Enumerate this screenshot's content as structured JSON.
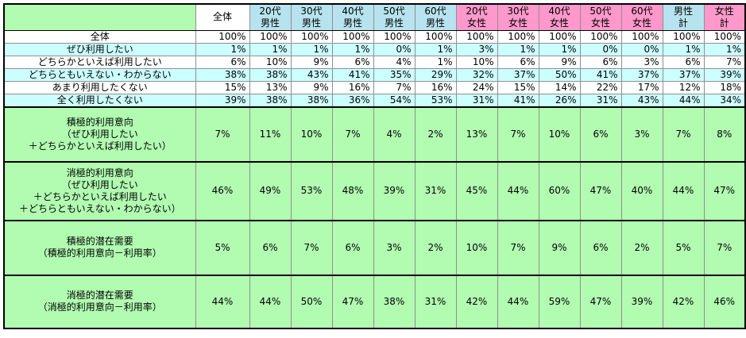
{
  "colors": {
    "summary_green": "#b2fcb2",
    "row_cyan": "#ccffff",
    "male_blue": "#b7e3ee",
    "female_pink": "#ff99cc",
    "grid_gray": "#8f8f8f",
    "border_black": "#000000"
  },
  "chart_data": {
    "type": "table",
    "corner_label": "",
    "columns": [
      {
        "lines": [
          "全体"
        ],
        "group": "total"
      },
      {
        "lines": [
          "20代",
          "男性"
        ],
        "group": "male"
      },
      {
        "lines": [
          "30代",
          "男性"
        ],
        "group": "male"
      },
      {
        "lines": [
          "40代",
          "男性"
        ],
        "group": "male"
      },
      {
        "lines": [
          "50代",
          "男性"
        ],
        "group": "male"
      },
      {
        "lines": [
          "60代",
          "男性"
        ],
        "group": "male"
      },
      {
        "lines": [
          "20代",
          "女性"
        ],
        "group": "female"
      },
      {
        "lines": [
          "30代",
          "女性"
        ],
        "group": "female"
      },
      {
        "lines": [
          "40代",
          "女性"
        ],
        "group": "female"
      },
      {
        "lines": [
          "50代",
          "女性"
        ],
        "group": "female"
      },
      {
        "lines": [
          "60代",
          "女性"
        ],
        "group": "female"
      },
      {
        "lines": [
          "男性",
          "計"
        ],
        "group": "male"
      },
      {
        "lines": [
          "女性",
          "計"
        ],
        "group": "female"
      }
    ],
    "rows": [
      {
        "label_lines": [
          "全体"
        ],
        "style": "white",
        "values": [
          "100%",
          "100%",
          "100%",
          "100%",
          "100%",
          "100%",
          "100%",
          "100%",
          "100%",
          "100%",
          "100%",
          "100%",
          "100%"
        ]
      },
      {
        "label_lines": [
          "ぜひ利用したい"
        ],
        "style": "cyan",
        "values": [
          "1%",
          "1%",
          "1%",
          "1%",
          "0%",
          "1%",
          "3%",
          "1%",
          "1%",
          "0%",
          "0%",
          "1%",
          "1%"
        ]
      },
      {
        "label_lines": [
          "どちらかといえば利用したい"
        ],
        "style": "white",
        "values": [
          "6%",
          "10%",
          "9%",
          "6%",
          "4%",
          "1%",
          "10%",
          "6%",
          "9%",
          "6%",
          "3%",
          "6%",
          "7%"
        ]
      },
      {
        "label_lines": [
          "どちらともいえない・わからない"
        ],
        "style": "cyan",
        "values": [
          "38%",
          "38%",
          "43%",
          "41%",
          "35%",
          "29%",
          "32%",
          "37%",
          "50%",
          "41%",
          "37%",
          "37%",
          "39%"
        ]
      },
      {
        "label_lines": [
          "あまり利用したくない"
        ],
        "style": "white",
        "values": [
          "15%",
          "13%",
          "9%",
          "16%",
          "7%",
          "16%",
          "24%",
          "15%",
          "14%",
          "22%",
          "17%",
          "12%",
          "18%"
        ]
      },
      {
        "label_lines": [
          "全く利用したくない"
        ],
        "style": "cyan",
        "values": [
          "39%",
          "38%",
          "38%",
          "36%",
          "54%",
          "53%",
          "31%",
          "41%",
          "26%",
          "31%",
          "43%",
          "44%",
          "34%"
        ]
      },
      {
        "label_lines": [
          "積極的利用意向",
          "（ぜひ利用したい",
          "＋どちらかといえば利用したい）"
        ],
        "style": "green",
        "values": [
          "7%",
          "11%",
          "10%",
          "7%",
          "4%",
          "2%",
          "13%",
          "7%",
          "10%",
          "6%",
          "3%",
          "7%",
          "8%"
        ]
      },
      {
        "label_lines": [
          "消極的利用意向",
          "（ぜひ利用したい",
          "＋どちらかといえば利用したい",
          "＋どちらともいえない・わからない）"
        ],
        "style": "green",
        "values": [
          "46%",
          "49%",
          "53%",
          "48%",
          "39%",
          "31%",
          "45%",
          "44%",
          "60%",
          "47%",
          "40%",
          "44%",
          "47%"
        ]
      },
      {
        "label_lines": [
          "積極的潜在需要",
          "（積極的利用意向－利用率）"
        ],
        "style": "green",
        "values": [
          "5%",
          "6%",
          "7%",
          "6%",
          "3%",
          "2%",
          "10%",
          "7%",
          "9%",
          "6%",
          "2%",
          "5%",
          "7%"
        ]
      },
      {
        "label_lines": [
          "消極的潜在需要",
          "（消極的利用意向－利用率）"
        ],
        "style": "green",
        "values": [
          "44%",
          "44%",
          "50%",
          "47%",
          "38%",
          "31%",
          "42%",
          "44%",
          "59%",
          "47%",
          "39%",
          "42%",
          "46%"
        ]
      }
    ]
  }
}
